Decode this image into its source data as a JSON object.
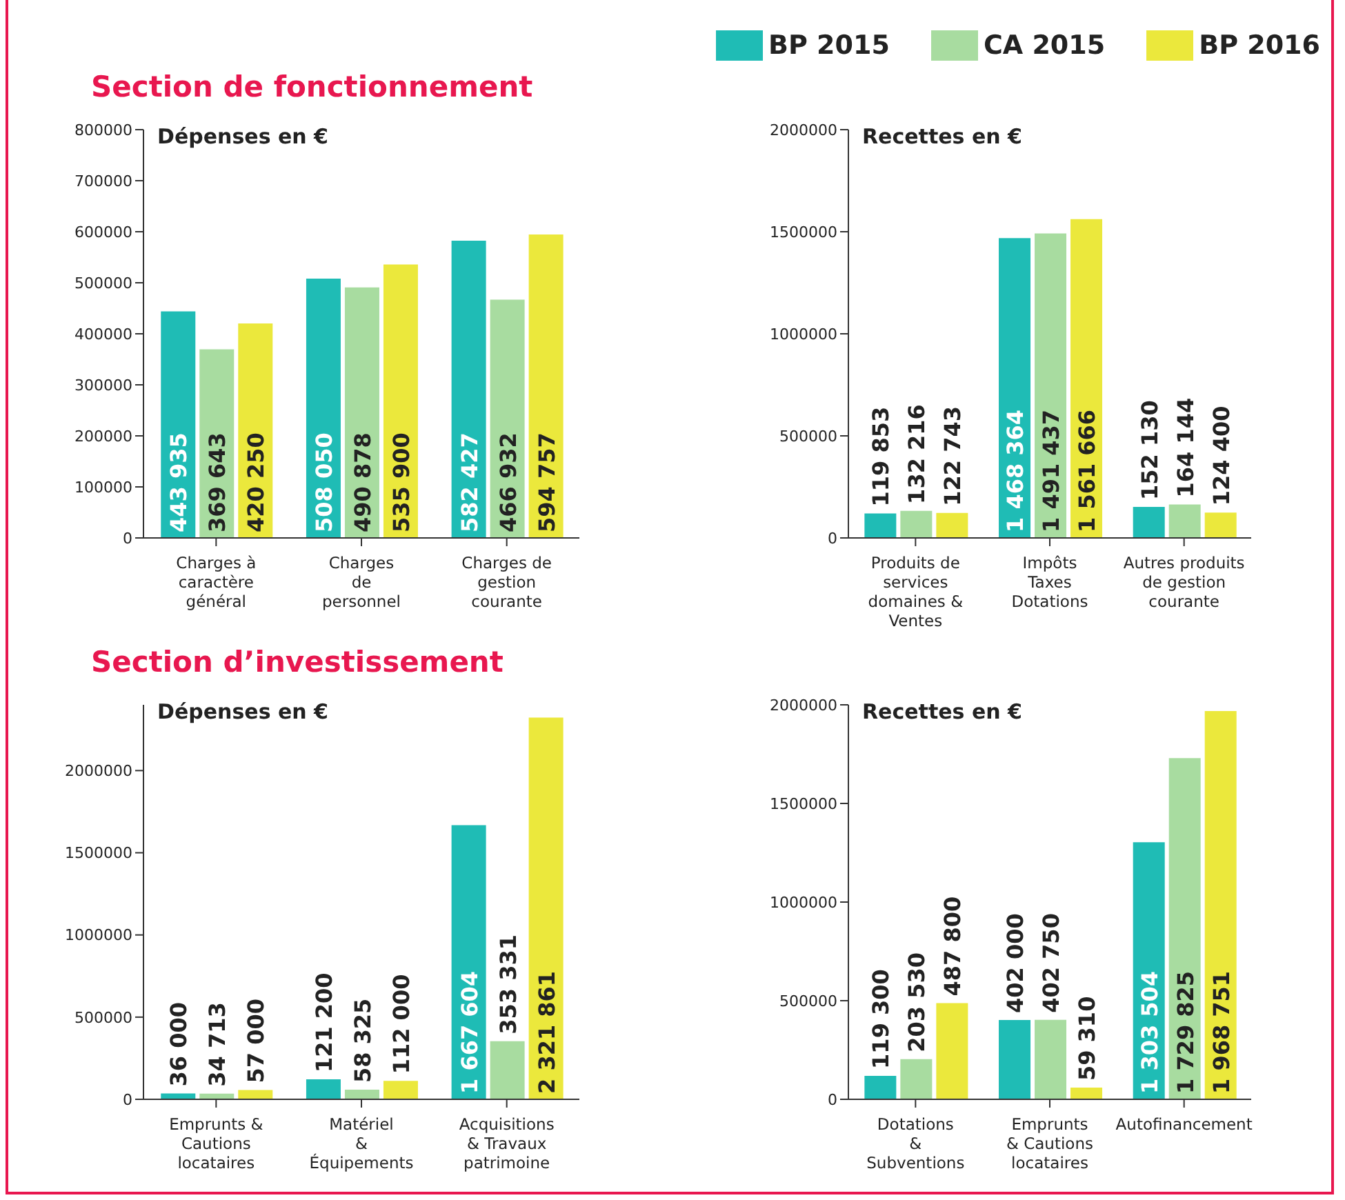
{
  "chart_data": [
    {
      "type": "bar",
      "subtitle": "Section de fonctionnement",
      "title": "Dépenses en €",
      "categories": [
        "Charges à\ncaractère\ngénéral",
        "Charges\nde\npersonnel",
        "Charges de\ngestion\ncourante"
      ],
      "series": [
        {
          "color": "#1fbcb5",
          "values": [
            443935,
            508050,
            582427
          ],
          "value_labels": [
            "443 935",
            "508 050",
            "582 427"
          ]
        },
        {
          "color": "#a8dca0",
          "values": [
            369643,
            490878,
            466932
          ],
          "value_labels": [
            "369 643",
            "490 878",
            "466 932"
          ]
        },
        {
          "color": "#ebe83c",
          "values": [
            420250,
            535900,
            594757
          ],
          "value_labels": [
            "420 250",
            "535 900",
            "594 757"
          ]
        }
      ],
      "ylim": [
        0,
        800000
      ],
      "yticks": [
        0,
        100000,
        200000,
        300000,
        400000,
        500000,
        600000,
        700000,
        800000
      ],
      "grid": false,
      "legend": false
    },
    {
      "type": "bar",
      "title": "Recettes en €",
      "categories": [
        "Produits de\nservices\ndomaines &\nVentes",
        "Impôts\nTaxes\nDotations",
        "Autres produits\nde gestion\ncourante"
      ],
      "series": [
        {
          "name": "BP 2015",
          "color": "#1fbcb5",
          "values": [
            119853,
            1468364,
            152130
          ],
          "value_labels": [
            "119 853",
            "1 468 364",
            "152 130"
          ]
        },
        {
          "name": "CA 2015",
          "color": "#a8dca0",
          "values": [
            132216,
            1491437,
            164144
          ],
          "value_labels": [
            "132 216",
            "1 491 437",
            "164 144"
          ]
        },
        {
          "name": "BP 2016",
          "color": "#ebe83c",
          "values": [
            122743,
            1561666,
            124400
          ],
          "value_labels": [
            "122 743",
            "1 561 666",
            "124 400"
          ]
        }
      ],
      "ylim": [
        0,
        2000000
      ],
      "yticks": [
        0,
        500000,
        1000000,
        1500000,
        2000000
      ],
      "grid": false,
      "legend": "top"
    },
    {
      "type": "bar",
      "subtitle": "Section d’investissement",
      "title": "Dépenses en €",
      "categories": [
        "Emprunts &\nCautions\nlocataires",
        "Matériel\n&\nÉquipements",
        "Acquisitions\n& Travaux\npatrimoine"
      ],
      "series": [
        {
          "color": "#1fbcb5",
          "values": [
            36000,
            121200,
            1667604
          ],
          "value_labels": [
            "36 000",
            "121 200",
            "1 667 604"
          ]
        },
        {
          "color": "#a8dca0",
          "values": [
            34713,
            58325,
            353331
          ],
          "value_labels": [
            "34 713",
            "58 325",
            "353 331"
          ]
        },
        {
          "color": "#ebe83c",
          "values": [
            57000,
            112000,
            2321861
          ],
          "value_labels": [
            "57 000",
            "112 000",
            "2 321 861"
          ]
        }
      ],
      "ylim": [
        0,
        2400000
      ],
      "yticks": [
        0,
        500000,
        1000000,
        1500000,
        2000000
      ],
      "grid": false,
      "legend": false
    },
    {
      "type": "bar",
      "title": "Recettes en €",
      "categories": [
        "Dotations\n&\nSubventions",
        "Emprunts\n& Cautions\nlocataires",
        "Autofinancement"
      ],
      "series": [
        {
          "color": "#1fbcb5",
          "values": [
            119300,
            402000,
            1303504
          ],
          "value_labels": [
            "119 300",
            "402 000",
            "1 303 504"
          ]
        },
        {
          "color": "#a8dca0",
          "values": [
            203530,
            402750,
            1729825
          ],
          "value_labels": [
            "203 530",
            "402 750",
            "1 729 825"
          ]
        },
        {
          "color": "#ebe83c",
          "values": [
            487800,
            59310,
            1968751
          ],
          "value_labels": [
            "487 800",
            "59 310",
            "1 968 751"
          ]
        }
      ],
      "ylim": [
        0,
        2000000
      ],
      "yticks": [
        0,
        500000,
        1000000,
        1500000,
        2000000
      ],
      "grid": false,
      "legend": false
    }
  ]
}
